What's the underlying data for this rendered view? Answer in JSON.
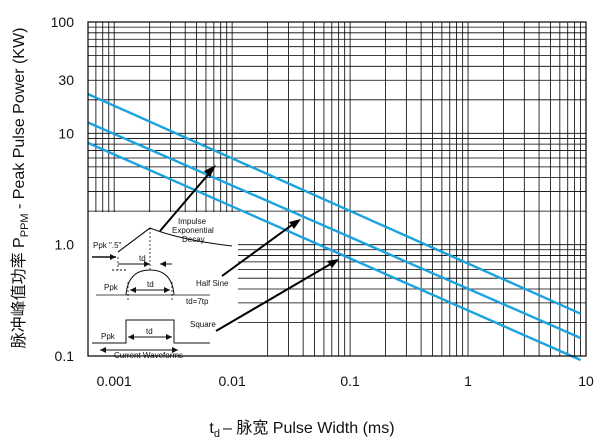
{
  "chart_data": {
    "type": "line",
    "x_scale": "log",
    "y_scale": "log",
    "xlim": [
      0.0006,
      10
    ],
    "ylim": [
      0.1,
      100
    ],
    "x_ticks": [
      {
        "value": 0.001,
        "label": "0.001"
      },
      {
        "value": 0.01,
        "label": "0.01"
      },
      {
        "value": 0.1,
        "label": "0.1"
      },
      {
        "value": 1,
        "label": "1"
      },
      {
        "value": 10,
        "label": "10"
      }
    ],
    "y_ticks": [
      {
        "value": 0.1,
        "label": "0.1"
      },
      {
        "value": 1,
        "label": "1.0"
      },
      {
        "value": 10,
        "label": "10"
      },
      {
        "value": 30,
        "label": "30"
      },
      {
        "value": 100,
        "label": "100"
      }
    ],
    "xlabel_main": "t",
    "xlabel_sub": "d",
    "xlabel_rest": "– 脉宽 Pulse Width (ms)",
    "ylabel_pre": "脉冲峰值功率 P",
    "ylabel_sub": "PPM",
    "ylabel_post": " - Peak Pulse Power (KW)",
    "grid": true,
    "series_color": "#1aa3e0",
    "series": [
      {
        "x": [
          0.0006,
          9
        ],
        "y": [
          22.5,
          0.24
        ]
      },
      {
        "x": [
          0.0006,
          9
        ],
        "y": [
          12.5,
          0.145
        ]
      },
      {
        "x": [
          0.0006,
          9
        ],
        "y": [
          8.2,
          0.092
        ]
      }
    ]
  },
  "inset": {
    "labels": {
      "impulse_1": "Impulse",
      "impulse_2": "Exponential",
      "impulse_3": "Decay",
      "ppk_half": "Ppk \".5\"",
      "td_top": "td",
      "ppk_mid": "Ppk",
      "td_mid": "td",
      "half_sine": "Half Sine",
      "td_7tp": "td=7tp",
      "ppk_low": "Ppk",
      "td_low": "td",
      "square": "Square",
      "current_waveforms": "Current Waveforms"
    }
  }
}
